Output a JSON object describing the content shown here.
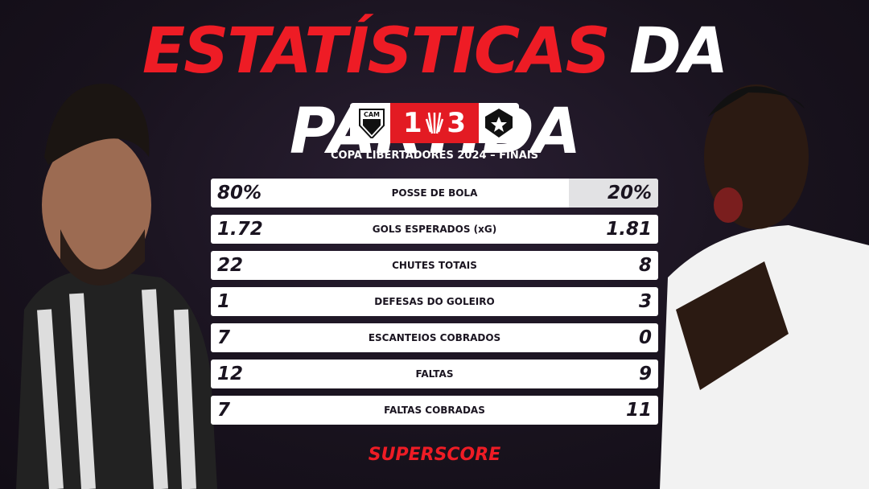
{
  "header": {
    "title_red": "ESTATÍSTICAS",
    "title_white": "DA PARTIDA"
  },
  "scoreboard": {
    "home_crest": "CAM",
    "home_score": "1",
    "away_score": "3",
    "competition": "COPA LIBERTADORES 2024 – FINAIS"
  },
  "stats": {
    "rows": [
      [
        "80%",
        "POSSE DE BOLA",
        "20%"
      ],
      [
        "1.72",
        "GOLS ESPERADOS (xG)",
        "1.81"
      ],
      [
        "22",
        "CHUTES TOTAIS",
        "8"
      ],
      [
        "1",
        "DEFESAS DO GOLEIRO",
        "3"
      ],
      [
        "7",
        "ESCANTEIOS COBRADOS",
        "0"
      ],
      [
        "12",
        "FALTAS",
        "9"
      ],
      [
        "7",
        "FALTAS COBRADAS",
        "11"
      ]
    ]
  },
  "footer": {
    "brand": "SUPERSCORE"
  }
}
